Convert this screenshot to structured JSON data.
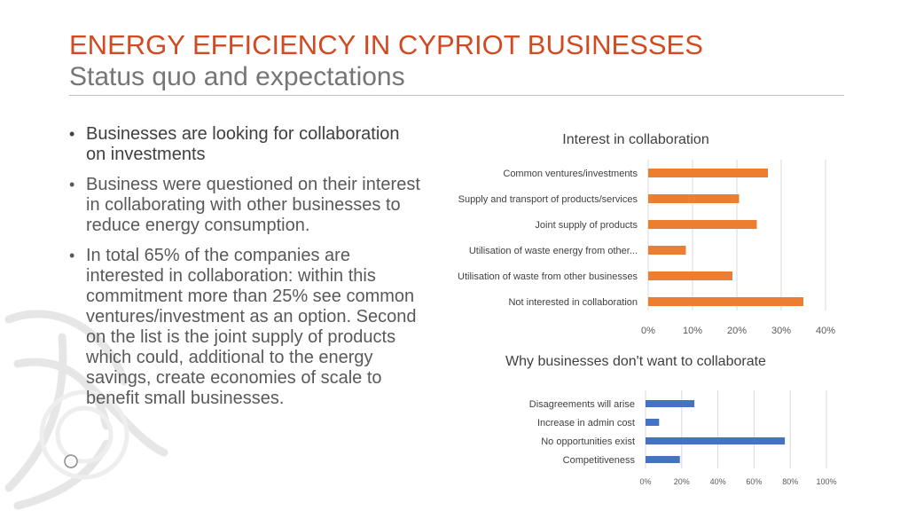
{
  "header": {
    "title": "ENERGY EFFICIENCY IN CYPRIOT BUSINESSES",
    "subtitle": "Status quo and expectations"
  },
  "bullets": [
    "Businesses are looking for collaboration on investments",
    "Business were questioned on their interest in collaborating with other businesses to reduce energy consumption.",
    "In total 65% of the companies are interested in collaboration: within this commitment more than 25% see common ventures/investment as an option. Second on the list is the joint supply of products which could, additional to the energy savings, create economies of scale to benefit small businesses."
  ],
  "bullet_glyph": "•",
  "colors": {
    "accent": "#d04a22",
    "bar1": "#ed7d31",
    "bar2": "#4472c4"
  },
  "chart_data": [
    {
      "type": "bar",
      "orientation": "horizontal",
      "title": "Interest in collaboration",
      "categories": [
        "Common ventures/investments",
        "Supply and transport of products/services",
        "Joint supply of products",
        "Utilisation of waste energy from other...",
        "Utilisation of waste from other businesses",
        "Not interested in collaboration"
      ],
      "values": [
        27,
        20.5,
        24.5,
        8.5,
        19,
        35
      ],
      "unit": "%",
      "xlim": [
        0,
        40
      ],
      "ticks": [
        "0%",
        "10%",
        "20%",
        "30%",
        "40%"
      ],
      "grid": true,
      "color": "#ed7d31"
    },
    {
      "type": "bar",
      "orientation": "horizontal",
      "title": "Why businesses don't want to collaborate",
      "categories": [
        "Disagreements will arise",
        "Increase in admin cost",
        "No opportunities exist",
        "Competitiveness"
      ],
      "values": [
        27,
        7.5,
        77,
        19
      ],
      "unit": "%",
      "xlim": [
        0,
        100
      ],
      "ticks": [
        "0%",
        "20%",
        "40%",
        "60%",
        "80%",
        "100%"
      ],
      "grid": true,
      "color": "#4472c4"
    }
  ]
}
